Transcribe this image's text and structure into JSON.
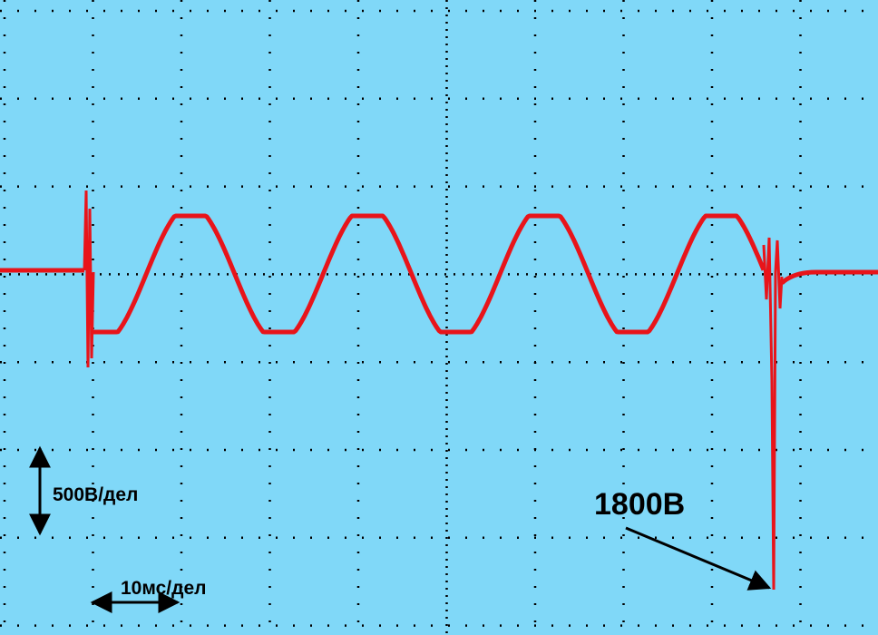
{
  "annotations": {
    "volts_per_div": "500В/дел",
    "time_per_div": "10мс/дел",
    "peak_label": "1800В"
  }
}
